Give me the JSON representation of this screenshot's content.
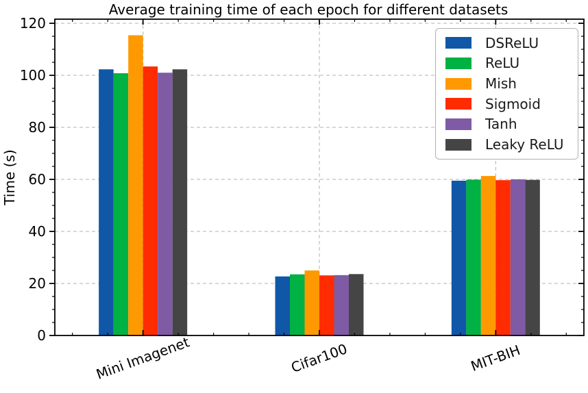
{
  "chart_data": {
    "type": "bar",
    "title": "Average training time of each epoch for different datasets",
    "xlabel": "",
    "ylabel": "Time (s)",
    "categories": [
      "Mini Imagenet",
      "Cifar100",
      "MIT-BIH"
    ],
    "series": [
      {
        "name": "DSReLU",
        "color": "#1057a7",
        "values": [
          102.3,
          22.7,
          59.5
        ]
      },
      {
        "name": "ReLU",
        "color": "#00b143",
        "values": [
          100.8,
          23.5,
          59.9
        ]
      },
      {
        "name": "Mish",
        "color": "#ff9902",
        "values": [
          115.4,
          25.0,
          61.3
        ]
      },
      {
        "name": "Sigmoid",
        "color": "#ff2b01",
        "values": [
          103.4,
          23.1,
          59.7
        ]
      },
      {
        "name": "Tanh",
        "color": "#7e5ba4",
        "values": [
          101.0,
          23.2,
          60.0
        ]
      },
      {
        "name": "Leaky ReLU",
        "color": "#454545",
        "values": [
          102.3,
          23.6,
          59.8
        ]
      }
    ],
    "ylim": [
      0,
      120
    ],
    "yticks": [
      0,
      20,
      40,
      60,
      80,
      100,
      120
    ],
    "grid": true,
    "grid_style": "dashed",
    "legend_position": "upper right",
    "xtick_rotation": 20,
    "tick_color": "#000000",
    "grid_color": "#b0b0b0"
  }
}
